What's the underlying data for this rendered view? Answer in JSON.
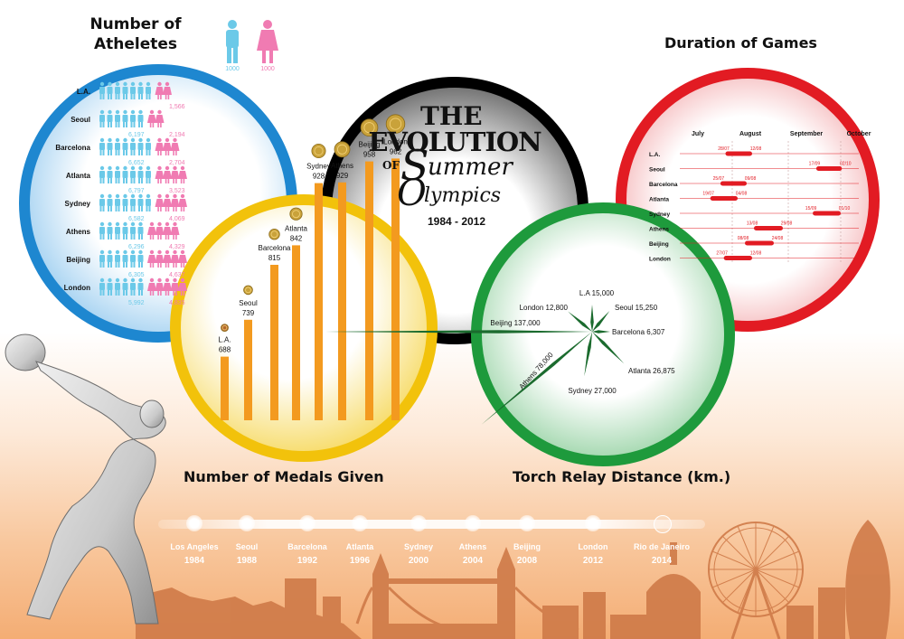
{
  "title": {
    "the": "THE",
    "evolution": "EVOLUTION",
    "of": "OF",
    "summer_s": "S",
    "summer_rest": "ummer",
    "olympics_o": "O",
    "olympics_rest": "lympics",
    "years": "1984 - 2012"
  },
  "athletes": {
    "heading_line1": "Number of",
    "heading_line2": "Atheletes",
    "legend_male": "1000",
    "legend_female": "1000",
    "rows": [
      {
        "city": "L.A.",
        "male": "",
        "female": "1,566"
      },
      {
        "city": "Seoul",
        "male": "6,197",
        "female": "2,194"
      },
      {
        "city": "Barcelona",
        "male": "6,652",
        "female": "2,704"
      },
      {
        "city": "Atlanta",
        "male": "6,797",
        "female": "3,523"
      },
      {
        "city": "Sydney",
        "male": "6,582",
        "female": "4,069"
      },
      {
        "city": "Athens",
        "male": "6,296",
        "female": "4,329"
      },
      {
        "city": "Beijing",
        "male": "6,305",
        "female": "4,637"
      },
      {
        "city": "London",
        "male": "5,992",
        "female": "4,835"
      }
    ]
  },
  "duration": {
    "heading": "Duration of Games",
    "months": [
      "July",
      "August",
      "September",
      "October"
    ],
    "rows": [
      {
        "city": "L.A.",
        "start": "28/07",
        "end": "12/08"
      },
      {
        "city": "Seoul",
        "start": "17/09",
        "end": "02/10"
      },
      {
        "city": "Barcelona",
        "start": "25/07",
        "end": "09/08"
      },
      {
        "city": "Atlanta",
        "start": "19/07",
        "end": "04/08"
      },
      {
        "city": "Sydney",
        "start": "15/09",
        "end": "01/10"
      },
      {
        "city": "Athens",
        "start": "13/08",
        "end": "29/08"
      },
      {
        "city": "Beijing",
        "start": "08/08",
        "end": "24/08"
      },
      {
        "city": "London",
        "start": "27/07",
        "end": "12/08"
      }
    ]
  },
  "chart_data": {
    "type": "bar",
    "title": "Number of Medals Given",
    "categories": [
      "L.A.",
      "Seoul",
      "Barcelona",
      "Atlanta",
      "Sydney",
      "Athens",
      "Beijing",
      "London"
    ],
    "values": [
      688,
      739,
      815,
      842,
      928,
      929,
      958,
      962
    ],
    "bar_color": "#f39a1f"
  },
  "torch": {
    "heading": "Torch Relay Distance (km.)",
    "items": [
      {
        "label": "L.A 15,000",
        "km": 15000
      },
      {
        "label": "Seoul 15,250",
        "km": 15250
      },
      {
        "label": "Barcelona 6,307",
        "km": 6307
      },
      {
        "label": "Atlanta 26,875",
        "km": 26875
      },
      {
        "label": "Sydney 27,000",
        "km": 27000
      },
      {
        "label": "Athens 78,000",
        "km": 78000
      },
      {
        "label": "Beijing 137,000",
        "km": 137000
      },
      {
        "label": "London 12,800",
        "km": 12800
      }
    ]
  },
  "timeline": [
    {
      "city": "Los Angeles",
      "year": "1984"
    },
    {
      "city": "Seoul",
      "year": "1988"
    },
    {
      "city": "Barcelona",
      "year": "1992"
    },
    {
      "city": "Atlanta",
      "year": "1996"
    },
    {
      "city": "Sydney",
      "year": "2000"
    },
    {
      "city": "Athens",
      "year": "2004"
    },
    {
      "city": "Beijing",
      "year": "2008"
    },
    {
      "city": "London",
      "year": "2012"
    },
    {
      "city": "Rio de Janeiro",
      "year": "2014"
    }
  ],
  "colors": {
    "ring_blue": "#1e87d0",
    "ring_yellow": "#f2c20b",
    "ring_black": "#000000",
    "ring_green": "#1e9a3c",
    "ring_red": "#e21b23",
    "male": "#6bc9e8",
    "female": "#f07bb2",
    "bar": "#f39a1f",
    "skyline": "#cf7a48"
  }
}
